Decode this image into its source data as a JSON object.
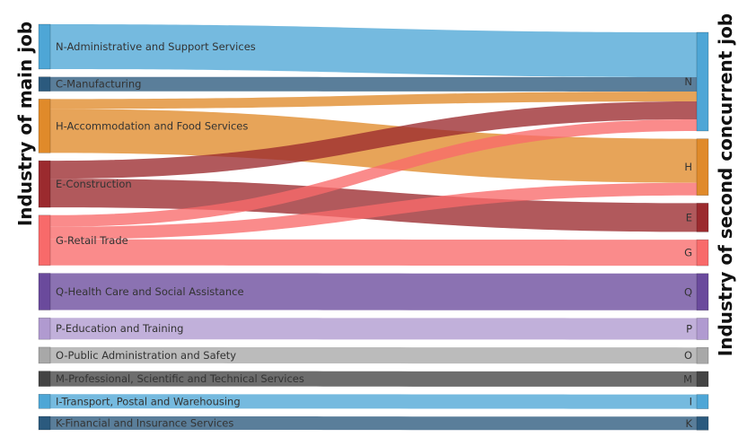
{
  "chart_data": {
    "type": "sankey",
    "left_axis_title": "Industry of main job",
    "right_axis_title": "Industry of second concurrent job",
    "nodes": [
      {
        "code": "N",
        "label": "N-Administrative and Support Services",
        "color": "#4ea6d6"
      },
      {
        "code": "C",
        "label": "C-Manufacturing",
        "color": "#2b5a7e"
      },
      {
        "code": "H",
        "label": "H-Accommodation and Food Services",
        "color": "#e08a2a"
      },
      {
        "code": "E",
        "label": "E-Construction",
        "color": "#9b2a2e"
      },
      {
        "code": "G",
        "label": "G-Retail Trade",
        "color": "#f86a6a"
      },
      {
        "code": "Q",
        "label": "Q-Health Care and Social Assistance",
        "color": "#6a4a9c"
      },
      {
        "code": "P",
        "label": "P-Education and Training",
        "color": "#b09ad0"
      },
      {
        "code": "O",
        "label": "O-Public Administration and Safety",
        "color": "#a8a8a8"
      },
      {
        "code": "M",
        "label": "M-Professional, Scientific and Technical Services",
        "color": "#444444"
      },
      {
        "code": "I",
        "label": "I-Transport, Postal and Warehousing",
        "color": "#4ea6d6"
      },
      {
        "code": "K",
        "label": "K-Financial and Insurance Services",
        "color": "#2b5a7e"
      }
    ],
    "right_nodes": [
      "N",
      "H",
      "E",
      "G",
      "Q",
      "P",
      "O",
      "M",
      "I",
      "K"
    ],
    "links": [
      {
        "source": "N",
        "target": "N",
        "value": 50
      },
      {
        "source": "C",
        "target": "N",
        "value": 16
      },
      {
        "source": "H",
        "target": "N",
        "value": 11
      },
      {
        "source": "H",
        "target": "H",
        "value": 49
      },
      {
        "source": "E",
        "target": "N",
        "value": 20
      },
      {
        "source": "E",
        "target": "E",
        "value": 32
      },
      {
        "source": "G",
        "target": "N",
        "value": 13
      },
      {
        "source": "G",
        "target": "H",
        "value": 14
      },
      {
        "source": "G",
        "target": "G",
        "value": 29
      },
      {
        "source": "Q",
        "target": "Q",
        "value": 41
      },
      {
        "source": "P",
        "target": "P",
        "value": 24
      },
      {
        "source": "O",
        "target": "O",
        "value": 18
      },
      {
        "source": "M",
        "target": "M",
        "value": 17
      },
      {
        "source": "I",
        "target": "I",
        "value": 16
      },
      {
        "source": "K",
        "target": "K",
        "value": 15
      }
    ]
  }
}
